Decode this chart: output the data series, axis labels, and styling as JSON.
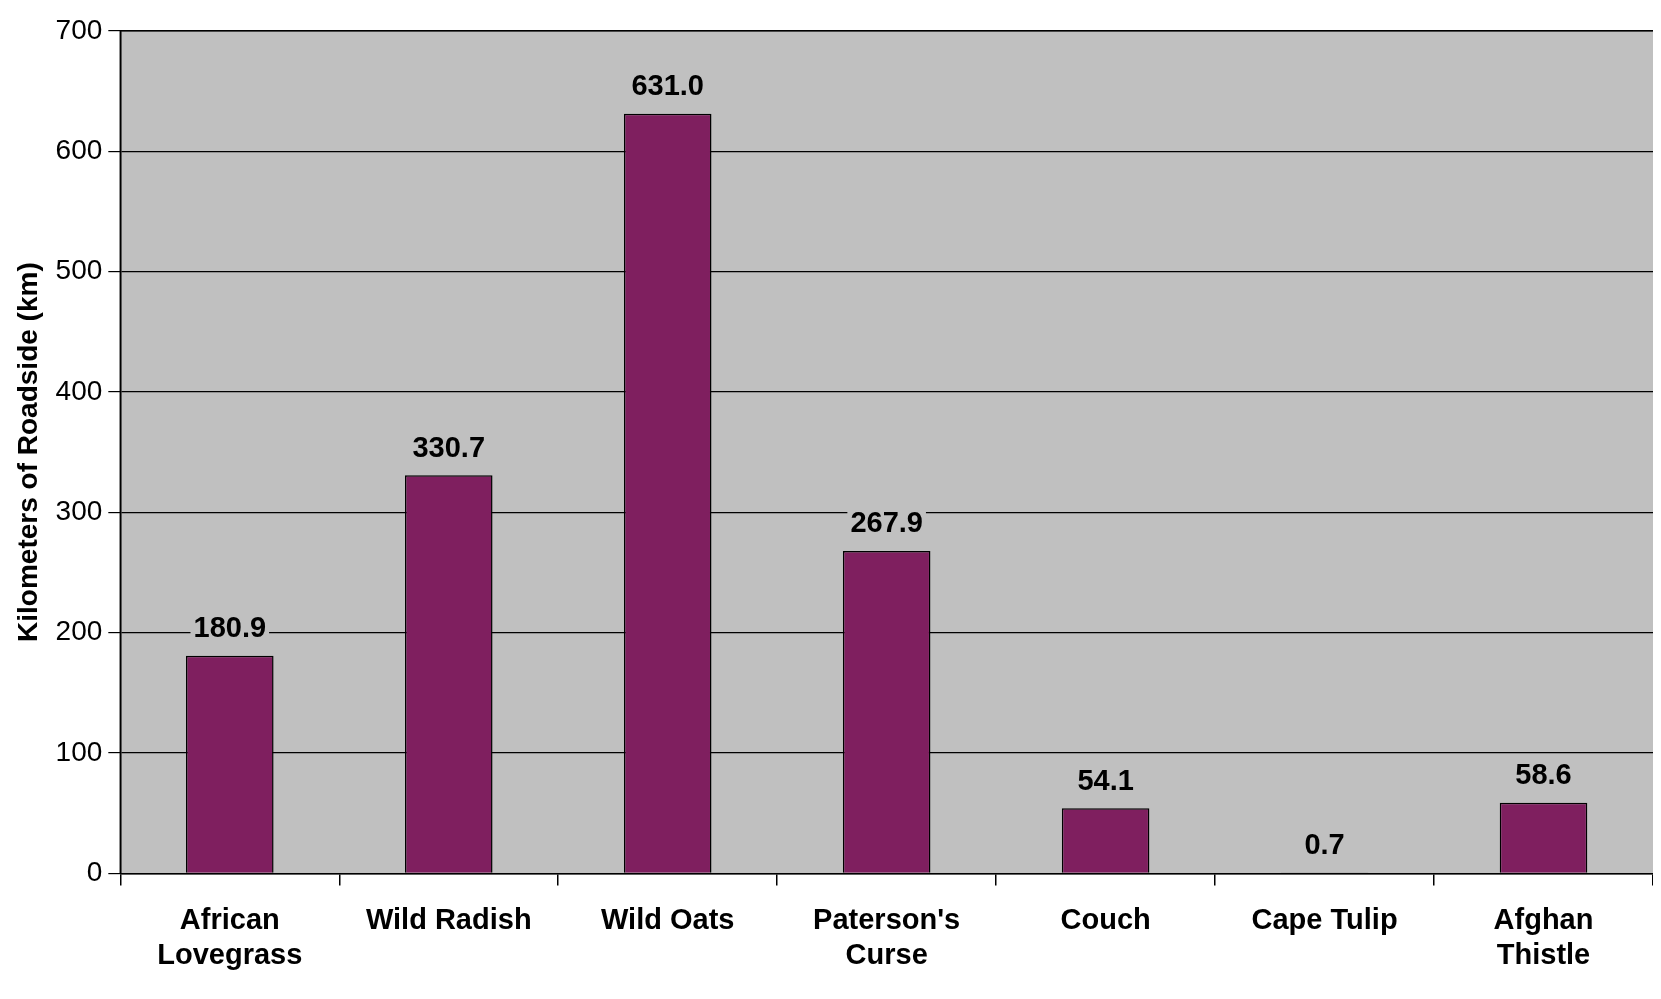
{
  "chart_data": {
    "type": "bar",
    "ylabel": "Kilometers of Roadside (km)",
    "categories": [
      "African\nLovegrass",
      "Wild Radish",
      "Wild Oats",
      "Paterson's\nCurse",
      "Couch",
      "Cape Tulip",
      "Afghan\nThistle"
    ],
    "values": [
      180.9,
      330.7,
      631.0,
      267.9,
      54.1,
      0.7,
      58.6
    ],
    "value_labels": [
      "180.9",
      "330.7",
      "631.0",
      "267.9",
      "54.1",
      "0.7",
      "58.6"
    ],
    "color": "#7f1f5f",
    "ylim": [
      0,
      700
    ],
    "yticks": [
      0,
      100,
      200,
      300,
      400,
      500,
      600,
      700
    ],
    "grid": "y",
    "legend": false
  }
}
